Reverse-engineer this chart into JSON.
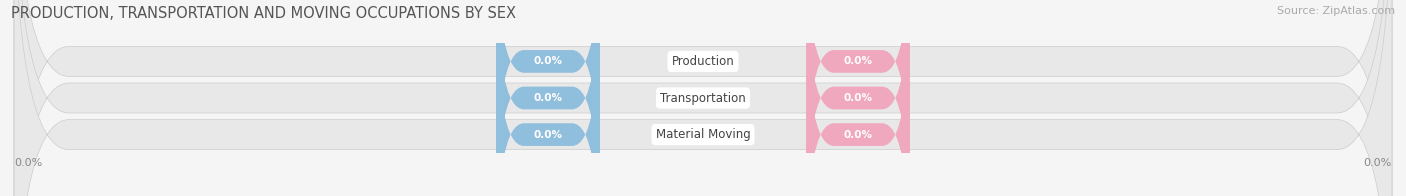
{
  "title": "PRODUCTION, TRANSPORTATION AND MOVING OCCUPATIONS BY SEX",
  "source_text": "Source: ZipAtlas.com",
  "categories": [
    "Production",
    "Transportation",
    "Material Moving"
  ],
  "male_values": [
    0.0,
    0.0,
    0.0
  ],
  "female_values": [
    0.0,
    0.0,
    0.0
  ],
  "male_color": "#90bedd",
  "female_color": "#f0a8be",
  "bar_label_color": "#ffffff",
  "category_label_color": "#444444",
  "background_bar_color": "#e8e8e8",
  "background_bar_border": "#d8d8d8",
  "title_color": "#555555",
  "title_fontsize": 10.5,
  "source_fontsize": 8,
  "fig_width": 14.06,
  "fig_height": 1.96,
  "dpi": 100
}
